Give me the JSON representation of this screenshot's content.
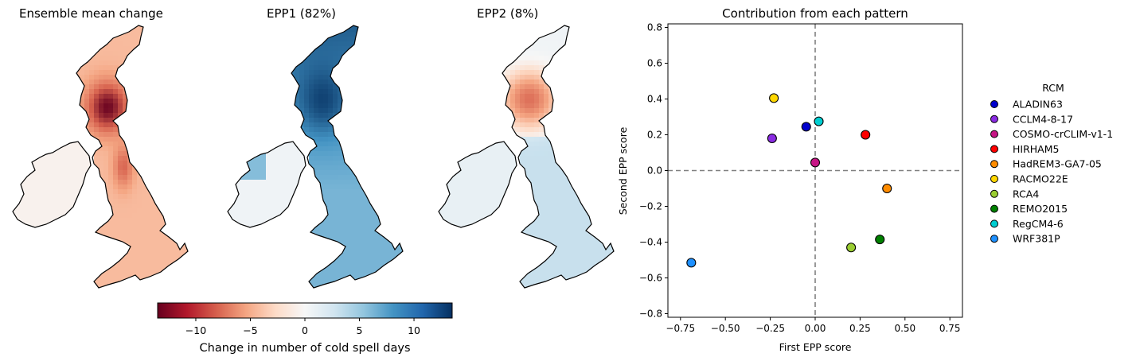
{
  "maps": [
    {
      "title": "Ensemble mean change"
    },
    {
      "title": "EPP1 (82%)"
    },
    {
      "title": "EPP2 (8%)"
    }
  ],
  "colorbar": {
    "label": "Change in number of cold spell days",
    "ticks": [
      "−10",
      "−5",
      "0",
      "5",
      "10"
    ],
    "tick_values": [
      -10,
      -5,
      0,
      5,
      10
    ],
    "range": [
      -13.5,
      13.5
    ],
    "colormap": "RdBu",
    "colors": {
      "low": "#67001f",
      "mid": "#f7f7f7",
      "high": "#053061"
    }
  },
  "chart_data": {
    "type": "scatter",
    "title": "Contribution from each pattern",
    "xlabel": "First EPP score",
    "ylabel": "Second EPP score",
    "xlim": [
      -0.82,
      0.82
    ],
    "ylim": [
      -0.82,
      0.82
    ],
    "x_ticks": [
      -0.75,
      -0.5,
      -0.25,
      0.0,
      0.25,
      0.5,
      0.75
    ],
    "x_tick_labels": [
      "−0.75",
      "−0.50",
      "−0.25",
      "0.00",
      "0.25",
      "0.50",
      "0.75"
    ],
    "y_ticks": [
      -0.8,
      -0.6,
      -0.4,
      -0.2,
      0.0,
      0.2,
      0.4,
      0.6,
      0.8
    ],
    "y_tick_labels": [
      "−0.8",
      "−0.6",
      "−0.4",
      "−0.2",
      "0.0",
      "0.2",
      "0.4",
      "0.6",
      "0.8"
    ],
    "grid": false,
    "reference_lines": {
      "x": 0,
      "y": 0,
      "style": "dashed",
      "color": "#808080"
    },
    "legend": {
      "title": "RCM",
      "placement": "outside-right"
    },
    "series": [
      {
        "name": "ALADIN63",
        "color": "#0000cd",
        "x": -0.05,
        "y": 0.245
      },
      {
        "name": "CCLM4-8-17",
        "color": "#8a2be2",
        "x": -0.24,
        "y": 0.18
      },
      {
        "name": "COSMO-crCLIM-v1-1",
        "color": "#c71585",
        "x": 0.0,
        "y": 0.045
      },
      {
        "name": "HIRHAM5",
        "color": "#ff0000",
        "x": 0.28,
        "y": 0.2
      },
      {
        "name": "HadREM3-GA7-05",
        "color": "#ff8c00",
        "x": 0.4,
        "y": -0.1
      },
      {
        "name": "RACMO22E",
        "color": "#ffd700",
        "x": -0.23,
        "y": 0.405
      },
      {
        "name": "RCA4",
        "color": "#9acd32",
        "x": 0.2,
        "y": -0.43
      },
      {
        "name": "REMO2015",
        "color": "#008000",
        "x": 0.36,
        "y": -0.385
      },
      {
        "name": "RegCM4-6",
        "color": "#00ced1",
        "x": 0.02,
        "y": 0.275
      },
      {
        "name": "WRF381P",
        "color": "#1e90ff",
        "x": -0.69,
        "y": -0.515
      }
    ]
  }
}
